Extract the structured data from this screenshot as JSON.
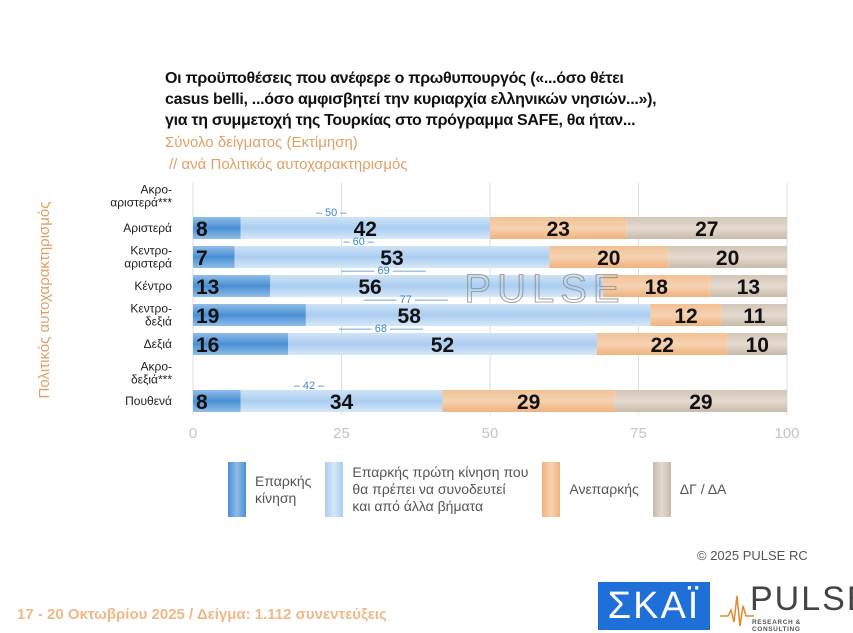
{
  "header": {
    "title_lines": [
      "Οι προϋποθέσεις που ανέφερε ο πρωθυπουργός («...όσο θέτει",
      "casus belli,  ...όσο αμφισβητεί την κυριαρχία ελληνικών νησιών...»),",
      "για τη συμμετοχή της Τουρκίας στο πρόγραμμα SAFE, θα ήταν..."
    ],
    "subtitle1": "Σύνολο δείγματος   (Εκτίμηση)",
    "subtitle2": "// ανά Πολιτικός αυτοχαρακτηρισμός"
  },
  "colors": {
    "adequate": "#5b9bd5",
    "first_step": "#bcd8f3",
    "inadequate": "#f4b883",
    "dk": "#cdbfae",
    "accent": "#e0a064"
  },
  "chart_data": {
    "type": "bar",
    "orientation": "horizontal-stacked",
    "title": "Οι προϋποθέσεις που ανέφερε ο πρωθυπουργός, για τη συμμετοχή της Τουρκίας στο πρόγραμμα SAFE, θα ήταν...",
    "ylabel": "Πολιτικός αυτοχαρακτηρισμός",
    "xlabel": "",
    "xlim": [
      0,
      100
    ],
    "xticks": [
      0,
      25,
      50,
      75,
      100
    ],
    "grid": true,
    "legend_position": "bottom",
    "categories": [
      [
        "Ακρο-",
        "αριστερά***"
      ],
      [
        "Αριστερά"
      ],
      [
        "Κεντρο-",
        "αριστερά"
      ],
      [
        "Κέντρο"
      ],
      [
        "Κεντρο-",
        "δεξιά"
      ],
      [
        "Δεξιά"
      ],
      [
        "Ακρο-",
        "δεξιά***"
      ],
      [
        "Πουθενά"
      ]
    ],
    "series": [
      {
        "name": "Επαρκής κίνηση",
        "legend": "Επαρκής\nκίνηση",
        "values": [
          null,
          8,
          7,
          13,
          19,
          16,
          null,
          8
        ]
      },
      {
        "name": "Επαρκής πρώτη κίνηση που θα πρέπει να συνοδευτεί και από άλλα βήματα",
        "legend": "Επαρκής πρώτη κίνηση που\nθα πρέπει να συνοδευτεί\nκαι από άλλα βήματα",
        "values": [
          null,
          42,
          53,
          56,
          58,
          52,
          null,
          34
        ]
      },
      {
        "name": "Ανεπαρκής",
        "legend": "Ανεπαρκής",
        "values": [
          null,
          23,
          20,
          18,
          12,
          22,
          null,
          29
        ]
      },
      {
        "name": "ΔΓ / ΔΑ",
        "legend": "ΔΓ / ΔΑ",
        "values": [
          null,
          27,
          20,
          13,
          11,
          10,
          null,
          29
        ]
      }
    ],
    "totals_adequate": [
      null,
      50,
      60,
      69,
      77,
      68,
      null,
      42
    ]
  },
  "watermark": "PULSE",
  "copyright": "© 2025 PULSE RC",
  "footer": "17 - 20 Οκτωβρίου 2025  /  Δείγμα:  1.112 συνεντεύξεις",
  "logos": {
    "skai": "ΣΚΑΪ",
    "pulse": "PULSE",
    "pulse_sub": "RESEARCH & CONSULTING"
  }
}
